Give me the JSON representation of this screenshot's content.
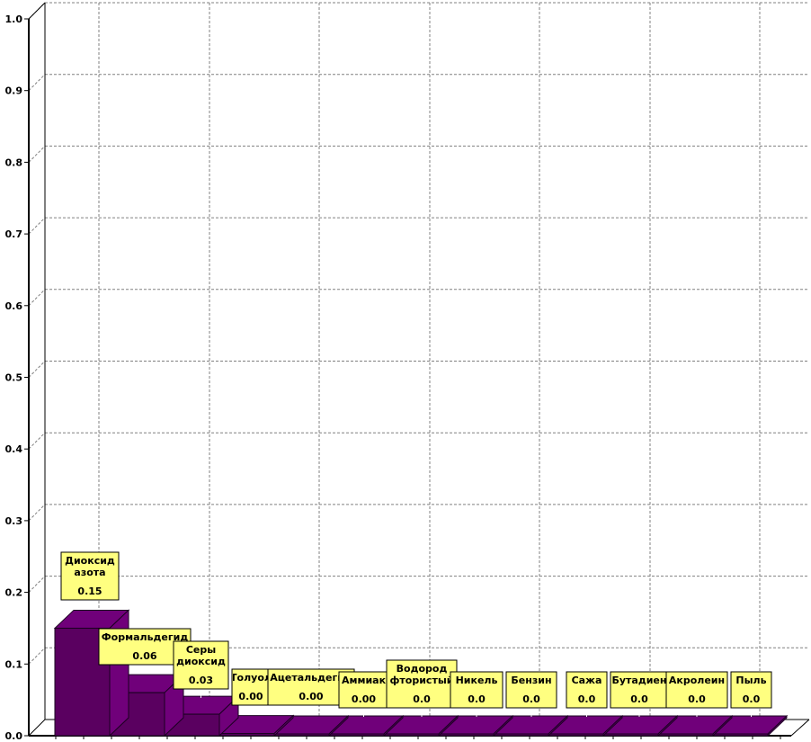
{
  "chart_data": {
    "type": "bar",
    "style": "3d",
    "title": "",
    "xlabel": "",
    "ylabel": "",
    "ylim": [
      0,
      1.0
    ],
    "grid": true,
    "yticks": [
      "0.0",
      "0.1",
      "0.2",
      "0.3",
      "0.4",
      "0.5",
      "0.6",
      "0.7",
      "0.8",
      "0.9",
      "1.0"
    ],
    "bars": [
      {
        "label": [
          "Диоксид",
          "азота"
        ],
        "value": 0.15,
        "value_label": "0.15"
      },
      {
        "label": [
          "Формальдегид"
        ],
        "value": 0.06,
        "value_label": "0.06"
      },
      {
        "label": [
          "Серы",
          "диоксид"
        ],
        "value": 0.03,
        "value_label": "0.03"
      },
      {
        "label": [
          "Толуол"
        ],
        "value": 0.003,
        "value_label": "0.00"
      },
      {
        "label": [
          "Ацетальдегид"
        ],
        "value": 0.002,
        "value_label": "0.00"
      },
      {
        "label": [
          "Аммиак"
        ],
        "value": 0.001,
        "value_label": "0.00"
      },
      {
        "label": [
          "Водород",
          "фтористый"
        ],
        "value": 0.0,
        "value_label": "0.0"
      },
      {
        "label": [
          "Никель"
        ],
        "value": 0.0,
        "value_label": "0.0"
      },
      {
        "label": [
          "Бензин"
        ],
        "value": 0.0,
        "value_label": "0.0"
      },
      {
        "label": [
          "Сажа"
        ],
        "value": 0.0,
        "value_label": "0.0"
      },
      {
        "label": [
          "Бутадиен"
        ],
        "value": 0.0,
        "value_label": "0.0"
      },
      {
        "label": [
          "Акролеин"
        ],
        "value": 0.0,
        "value_label": "0.0"
      },
      {
        "label": [
          "Пыль"
        ],
        "value": 0.0,
        "value_label": "0.0"
      }
    ],
    "colors": {
      "bar_front": "#5a0060",
      "bar_top": "#70007a",
      "bar_edge": "#1a0020",
      "callout_fill": "#ffff80",
      "grid": "#808080"
    }
  }
}
